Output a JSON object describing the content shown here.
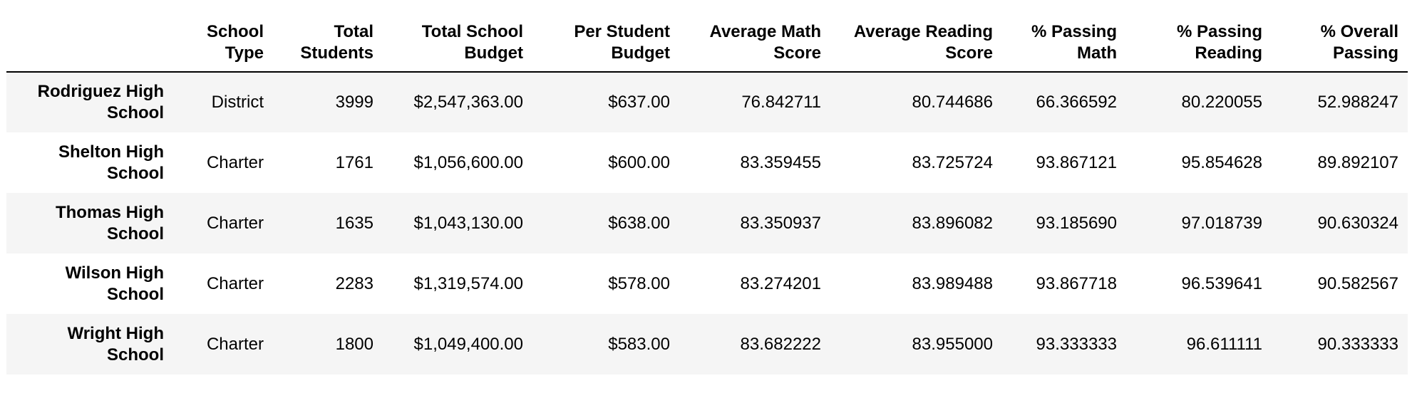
{
  "table": {
    "columns": [
      "",
      "School Type",
      "Total Students",
      "Total School Budget",
      "Per Student Budget",
      "Average Math Score",
      "Average Reading Score",
      "% Passing Math",
      "% Passing Reading",
      "% Overall Passing"
    ],
    "rows": [
      {
        "name": "Rodriguez High School",
        "type": "District",
        "students": "3999",
        "budget": "$2,547,363.00",
        "per_student": "$637.00",
        "avg_math": "76.842711",
        "avg_reading": "80.744686",
        "pct_math": "66.366592",
        "pct_reading": "80.220055",
        "pct_overall": "52.988247"
      },
      {
        "name": "Shelton High School",
        "type": "Charter",
        "students": "1761",
        "budget": "$1,056,600.00",
        "per_student": "$600.00",
        "avg_math": "83.359455",
        "avg_reading": "83.725724",
        "pct_math": "93.867121",
        "pct_reading": "95.854628",
        "pct_overall": "89.892107"
      },
      {
        "name": "Thomas High School",
        "type": "Charter",
        "students": "1635",
        "budget": "$1,043,130.00",
        "per_student": "$638.00",
        "avg_math": "83.350937",
        "avg_reading": "83.896082",
        "pct_math": "93.185690",
        "pct_reading": "97.018739",
        "pct_overall": "90.630324"
      },
      {
        "name": "Wilson High School",
        "type": "Charter",
        "students": "2283",
        "budget": "$1,319,574.00",
        "per_student": "$578.00",
        "avg_math": "83.274201",
        "avg_reading": "83.989488",
        "pct_math": "93.867718",
        "pct_reading": "96.539641",
        "pct_overall": "90.582567"
      },
      {
        "name": "Wright High School",
        "type": "Charter",
        "students": "1800",
        "budget": "$1,049,400.00",
        "per_student": "$583.00",
        "avg_math": "83.682222",
        "avg_reading": "83.955000",
        "pct_math": "93.333333",
        "pct_reading": "96.611111",
        "pct_overall": "90.333333"
      }
    ]
  }
}
